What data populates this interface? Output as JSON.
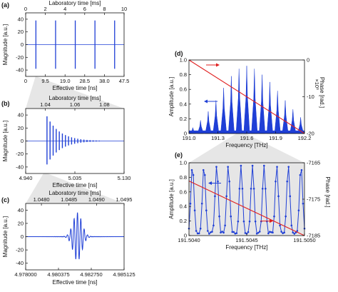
{
  "chart_data": [
    {
      "panel": "(a)",
      "type": "line",
      "xlabel": "Effective time [ns]",
      "top_xlabel": "Laboratory time [ms]",
      "ylabel": "Magnitude [a.u.]",
      "xticks": [
        "0",
        "9.5",
        "19.0",
        "28.5",
        "38.0",
        "47.5"
      ],
      "top_xticks": [
        "0",
        "2",
        "4",
        "6",
        "8",
        "10"
      ],
      "yticks": [
        "40",
        "20",
        "0",
        "-20",
        "-40"
      ],
      "xlim": [
        0,
        47.5
      ],
      "ylim": [
        -50,
        50
      ],
      "series": [
        {
          "color": "#1f3fd6",
          "pulse_centers": [
            4.94,
            14.44,
            23.94,
            33.44,
            42.94
          ],
          "peak": 38
        }
      ]
    },
    {
      "panel": "(b)",
      "type": "line",
      "xlabel": "Effective time [ns]",
      "top_xlabel": "Laboratory time [ms]",
      "ylabel": "Magnitude [a.u.]",
      "xticks": [
        "4.940",
        "5.035",
        "5.130"
      ],
      "top_xticks": [
        "1.04",
        "1.06",
        "1.08"
      ],
      "yticks": [
        "40",
        "20",
        "0",
        "-20",
        "-40"
      ],
      "xlim": [
        4.92,
        5.16
      ],
      "ylim": [
        -50,
        50
      ],
      "series": [
        {
          "color": "#1f3fd6",
          "envelope_peak": 38,
          "start": 4.972,
          "spacing": 0.0075
        }
      ]
    },
    {
      "panel": "(c)",
      "type": "line",
      "xlabel": "Effective time [ns]",
      "top_xlabel": "Laboratory time [ms]",
      "ylabel": "Magnitude [a.u.]",
      "xticks": [
        "4.978000",
        "4.980375",
        "4.982750",
        "4.985125"
      ],
      "top_xticks": [
        "1.0480",
        "1.0485",
        "1.0490",
        "1.0495"
      ],
      "yticks": [
        "40",
        "20",
        "0",
        "-20",
        "-40"
      ],
      "xlim": [
        4.978,
        4.985125
      ],
      "ylim": [
        -50,
        50
      ],
      "series": [
        {
          "color": "#1f3fd6",
          "center": 4.98175,
          "peak": 36
        }
      ]
    },
    {
      "panel": "(d)",
      "type": "line",
      "xlabel": "Frequency [THz]",
      "ylabel": "Amplitude [a.u.]",
      "y2label": "Phase [rad.]",
      "y2_multiplier": "×10³",
      "xticks": [
        "191.0",
        "191.3",
        "191.6",
        "191.9",
        "192.2"
      ],
      "yticks": [
        "1.0",
        "0.8",
        "0.6",
        "0.4",
        "0.2",
        "0"
      ],
      "y2ticks": [
        "0",
        "-10",
        "-20"
      ],
      "xlim": [
        191.0,
        192.2
      ],
      "ylim": [
        0,
        1.0
      ],
      "y2lim": [
        -20,
        0
      ],
      "series": [
        {
          "axis": "left",
          "color": "#1f3fd6",
          "comb_peaks": [
            0.08,
            0.18,
            0.3,
            0.45,
            0.62,
            0.78,
            0.88,
            0.92,
            0.88,
            0.8,
            0.7,
            0.58,
            0.45,
            0.33,
            0.22
          ]
        },
        {
          "axis": "right",
          "color": "#e02020",
          "x": [
            191.0,
            192.2
          ],
          "y": [
            0,
            -20
          ]
        }
      ]
    },
    {
      "panel": "(e)",
      "type": "line",
      "xlabel": "Frequency [THz]",
      "ylabel": "Amplitude [a.u.]",
      "y2label": "Phase [rad.]",
      "xticks": [
        "191.5040",
        "191.5045",
        "191.5050"
      ],
      "yticks": [
        "1.0",
        "0.8",
        "0.6",
        "0.4",
        "0.2",
        "0"
      ],
      "y2ticks": [
        "-7165",
        "-7175",
        "-7185"
      ],
      "xlim": [
        191.504,
        191.505
      ],
      "ylim": [
        0,
        1.0
      ],
      "y2lim": [
        -7185,
        -7165
      ],
      "series": [
        {
          "axis": "left",
          "color": "#1f3fd6",
          "peaks_x": [
            191.50403,
            191.50413,
            191.50424,
            191.50434,
            191.50445,
            191.50455,
            191.50465,
            191.50476,
            191.50486,
            191.50497
          ]
        },
        {
          "axis": "right",
          "color": "#e02020",
          "x": [
            191.504,
            191.505
          ],
          "y": [
            -7170,
            -7185
          ]
        }
      ]
    }
  ]
}
